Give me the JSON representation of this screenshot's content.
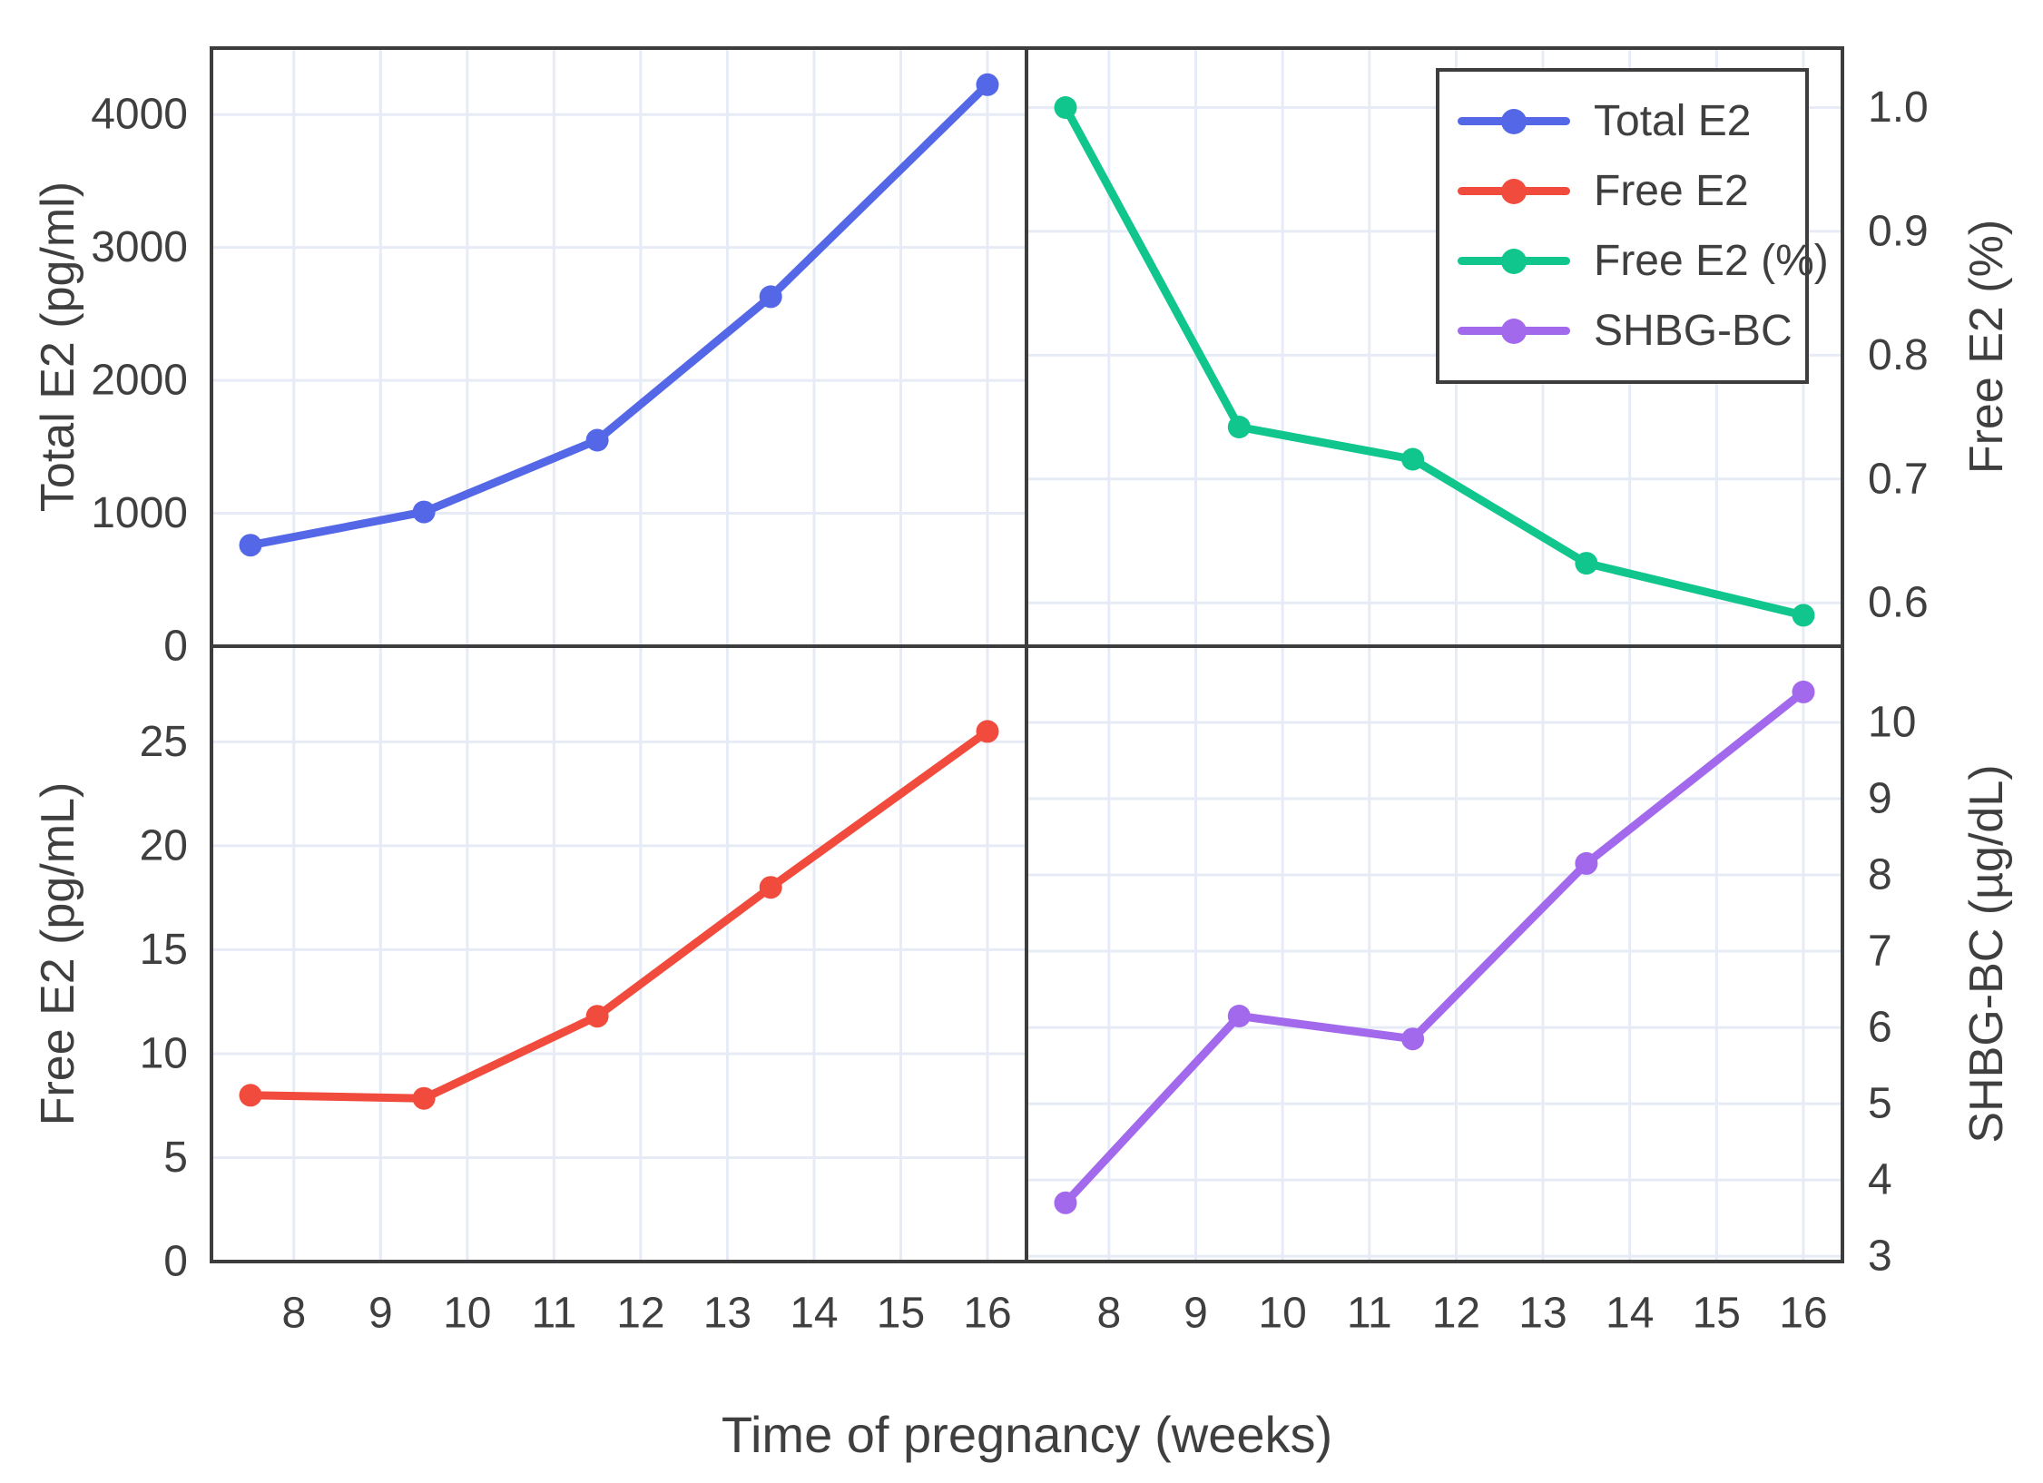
{
  "figure": {
    "xlabel": "Time of pregnancy (weeks)",
    "background": "#ffffff",
    "text_color": "#3f3f3f"
  },
  "legend": {
    "items": [
      {
        "label": "Total E2",
        "color": "#5468e7",
        "marker": "circle-icon"
      },
      {
        "label": "Free E2",
        "color": "#f04b3c",
        "marker": "circle-icon"
      },
      {
        "label": "Free E2 (%)",
        "color": "#10c68c",
        "marker": "circle-icon"
      },
      {
        "label": "SHBG-BC",
        "color": "#a369ec",
        "marker": "circle-icon"
      }
    ]
  },
  "chart_data": {
    "type": "line",
    "layout": "2x2 panels, shared x-axis",
    "grid": "on",
    "legend_position": "top-right panel, inside",
    "x_axis": {
      "label": "Time of pregnancy (weeks)",
      "lim": [
        7.05,
        16.45
      ],
      "ticks": [
        8,
        9,
        10,
        11,
        12,
        13,
        14,
        15,
        16
      ],
      "tick_labels": [
        "8",
        "9",
        "10",
        "11",
        "12",
        "13",
        "14",
        "15",
        "16"
      ]
    },
    "x": [
      7.5,
      9.5,
      11.5,
      13.5,
      16
    ],
    "panels": [
      {
        "name": "total-e2",
        "position": "top-left",
        "series": "Total E2",
        "color": "#5468e7",
        "ylabel": "Total E2 (pg/ml)",
        "axis_side": "left",
        "ylim": [
          0,
          4500
        ],
        "yticks": [
          0,
          1000,
          2000,
          3000,
          4000
        ],
        "ytick_labels": [
          "0",
          "1000",
          "2000",
          "3000",
          "4000"
        ],
        "values": [
          760,
          1010,
          1550,
          2630,
          4225
        ]
      },
      {
        "name": "free-e2-percent",
        "position": "top-right",
        "series": "Free E2 (%)",
        "color": "#10c68c",
        "ylabel": "Free E2 (%)",
        "axis_side": "right",
        "ylim": [
          0.565,
          1.048
        ],
        "yticks": [
          0.6,
          0.7,
          0.8,
          0.9,
          1.0
        ],
        "ytick_labels": [
          "0.6",
          "0.7",
          "0.8",
          "0.9",
          "1.0"
        ],
        "values": [
          1.0,
          0.742,
          0.716,
          0.632,
          0.59
        ]
      },
      {
        "name": "free-e2",
        "position": "bottom-left",
        "series": "Free E2",
        "color": "#f04b3c",
        "ylabel": "Free E2 (pg/mL)",
        "axis_side": "left",
        "ylim": [
          0,
          29.6
        ],
        "yticks": [
          0,
          5,
          10,
          15,
          20,
          25
        ],
        "ytick_labels": [
          "0",
          "5",
          "10",
          "15",
          "20",
          "25"
        ],
        "values": [
          8.0,
          7.85,
          11.8,
          18.0,
          25.5
        ]
      },
      {
        "name": "shbg-bc",
        "position": "bottom-right",
        "series": "SHBG-BC",
        "color": "#a369ec",
        "ylabel": "SHBG-BC (µg/dL)",
        "axis_side": "right",
        "ylim": [
          2.93,
          11.0
        ],
        "yticks": [
          3,
          4,
          5,
          6,
          7,
          8,
          9,
          10
        ],
        "ytick_labels": [
          "3",
          "4",
          "5",
          "6",
          "7",
          "8",
          "9",
          "10"
        ],
        "values": [
          3.7,
          6.15,
          5.85,
          8.15,
          10.4
        ]
      }
    ],
    "style": {
      "grid_color": "#e6ebf6",
      "border_color": "#3d3d3d",
      "text_color": "#3f3f3f",
      "line_width": 9,
      "marker_radius": 12.5
    }
  }
}
